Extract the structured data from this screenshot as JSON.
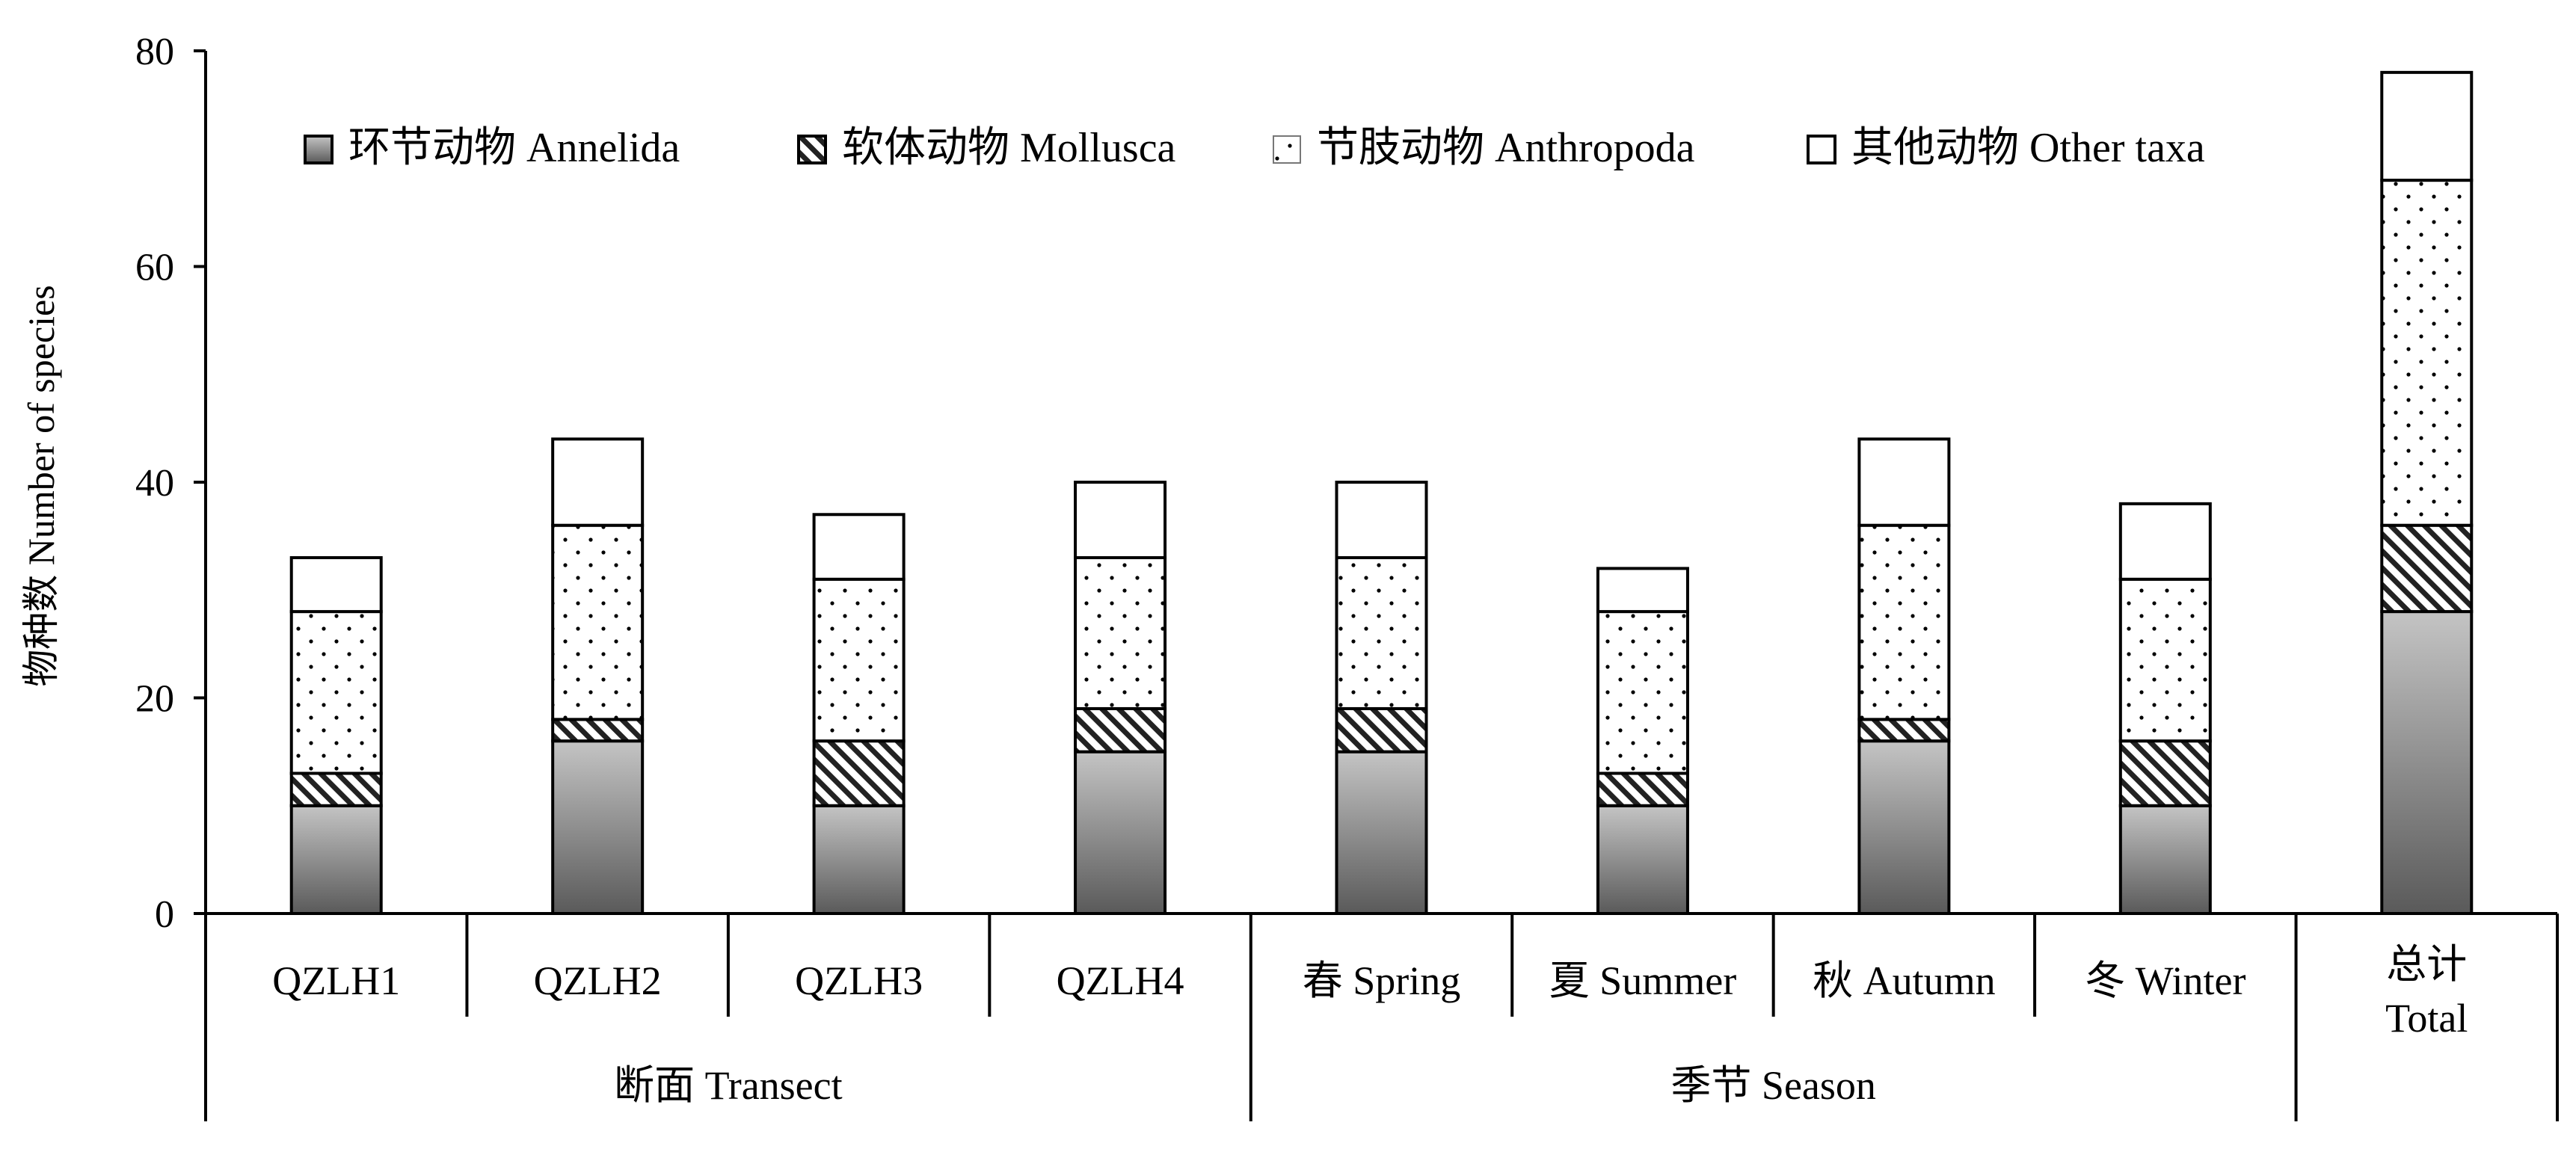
{
  "chart_data": {
    "type": "bar",
    "stacked": true,
    "ylabel": "物种数  Number of species",
    "ylim": [
      0,
      80
    ],
    "yticks": [
      0,
      20,
      40,
      60,
      80
    ],
    "grid": false,
    "legend_position": "top",
    "categories": [
      "QZLH1",
      "QZLH2",
      "QZLH3",
      "QZLH4",
      "春  Spring",
      "夏  Summer",
      "秋  Autumn",
      "冬  Winter",
      "总计 Total"
    ],
    "category_lines": [
      [
        "QZLH1"
      ],
      [
        "QZLH2"
      ],
      [
        "QZLH3"
      ],
      [
        "QZLH4"
      ],
      [
        "春  Spring"
      ],
      [
        "夏  Summer"
      ],
      [
        "秋  Autumn"
      ],
      [
        "冬  Winter"
      ],
      [
        "总计",
        "Total"
      ]
    ],
    "groups": [
      {
        "label": "断面  Transect",
        "members": [
          0,
          1,
          2,
          3
        ]
      },
      {
        "label": "季节 Season",
        "members": [
          4,
          5,
          6,
          7
        ]
      },
      {
        "label": "",
        "members": [
          8
        ]
      }
    ],
    "series": [
      {
        "name": "环节动物 Annelida",
        "pattern": "gradient-gray",
        "values": [
          10,
          16,
          10,
          15,
          15,
          10,
          16,
          10,
          28
        ]
      },
      {
        "name": "软体动物 Mollusca",
        "pattern": "diagonal-hatch",
        "values": [
          3,
          2,
          6,
          4,
          4,
          3,
          2,
          6,
          8
        ]
      },
      {
        "name": "节肢动物 Anthropoda",
        "pattern": "dots",
        "values": [
          15,
          18,
          15,
          14,
          14,
          15,
          18,
          15,
          32
        ]
      },
      {
        "name": "其他动物 Other taxa",
        "pattern": "white",
        "values": [
          5,
          8,
          6,
          7,
          7,
          4,
          8,
          7,
          10
        ]
      }
    ]
  }
}
